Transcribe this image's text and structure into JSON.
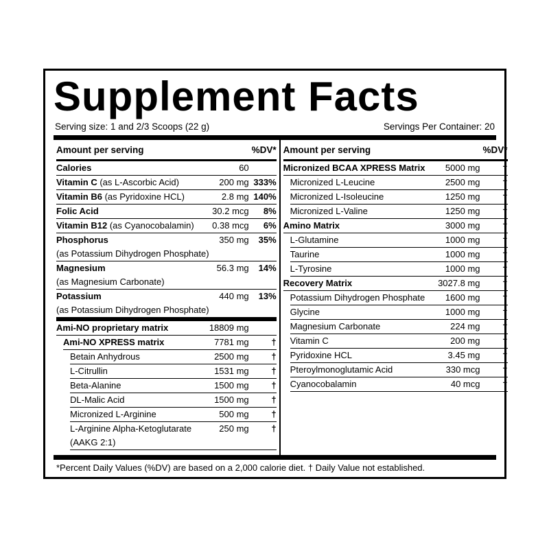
{
  "title": "Supplement Facts",
  "serving_size": "Serving size: 1 and 2/3 Scoops (22 g)",
  "servings_per_container": "Servings Per Container: 20",
  "left": {
    "headers": [
      "Amount per serving",
      "%DV*"
    ],
    "nutrients": [
      {
        "name": "Calories",
        "amount": "60"
      },
      {
        "name": "Vitamin C",
        "qualifier": "(as L-Ascorbic Acid)",
        "amount": "200 mg",
        "dv": "333%"
      },
      {
        "name": "Vitamin B6",
        "qualifier": "(as Pyridoxine HCL)",
        "amount": "2.8 mg",
        "dv": "140%"
      },
      {
        "name": "Folic Acid",
        "amount": "30.2 mcg",
        "dv": "8%"
      },
      {
        "name": "Vitamin B12",
        "qualifier": "(as Cyanocobalamin)",
        "amount": "0.38 mcg",
        "dv": "6%"
      },
      {
        "name": "Phosphorus",
        "detail": "(as Potassium Dihydrogen Phosphate)",
        "amount": "350 mg",
        "dv": "35%"
      },
      {
        "name": "Magnesium",
        "detail": "(as Magnesium Carbonate)",
        "amount": "56.3 mg",
        "dv": "14%"
      },
      {
        "name": "Potassium",
        "detail": "(as Potassium Dihydrogen Phosphate)",
        "amount": "440 mg",
        "dv": "13%"
      }
    ],
    "blend": {
      "name": "Ami-NO proprietary matrix",
      "amount": "18809 mg",
      "groups": [
        {
          "name": "Ami-NO XPRESS matrix",
          "amount": "7781 mg",
          "dv": "†",
          "items": [
            {
              "name": "Betain Anhydrous",
              "amount": "2500 mg",
              "dv": "†"
            },
            {
              "name": "L-Citrullin",
              "amount": "1531 mg",
              "dv": "†"
            },
            {
              "name": "Beta-Alanine",
              "amount": "1500 mg",
              "dv": "†"
            },
            {
              "name": "DL-Malic Acid",
              "amount": "1500 mg",
              "dv": "†"
            },
            {
              "name": "Micronized L-Arginine",
              "amount": "500 mg",
              "dv": "†"
            },
            {
              "name": "L-Arginine Alpha-Ketoglutarate",
              "detail": "(AAKG 2:1)",
              "amount": "250 mg",
              "dv": "†"
            }
          ]
        }
      ]
    }
  },
  "right": {
    "headers": [
      "Amount per serving",
      "%DV*"
    ],
    "blends": [
      {
        "name": "Micronized BCAA XPRESS Matrix",
        "amount": "5000 mg",
        "dv": "†",
        "items": [
          {
            "name": "Micronized L-Leucine",
            "amount": "2500 mg",
            "dv": "†"
          },
          {
            "name": "Micronized L-Isoleucine",
            "amount": "1250 mg",
            "dv": "†"
          },
          {
            "name": "Micronized L-Valine",
            "amount": "1250 mg",
            "dv": "†"
          }
        ]
      },
      {
        "name": "Amino Matrix",
        "amount": "3000 mg",
        "dv": "†",
        "items": [
          {
            "name": "L-Glutamine",
            "amount": "1000 mg",
            "dv": "†"
          },
          {
            "name": "Taurine",
            "amount": "1000 mg",
            "dv": "†"
          },
          {
            "name": "L-Tyrosine",
            "amount": "1000 mg",
            "dv": "†"
          }
        ]
      },
      {
        "name": "Recovery Matrix",
        "amount": "3027.8 mg",
        "dv": "†",
        "items": [
          {
            "name": "Potassium Dihydrogen Phosphate",
            "amount": "1600 mg",
            "dv": "†"
          },
          {
            "name": "Glycine",
            "amount": "1000 mg",
            "dv": "†"
          },
          {
            "name": "Magnesium Carbonate",
            "amount": "224 mg",
            "dv": "†"
          },
          {
            "name": "Vitamin C",
            "amount": "200 mg",
            "dv": "†"
          },
          {
            "name": "Pyridoxine HCL",
            "amount": "3.45 mg",
            "dv": "†"
          },
          {
            "name": "Pteroylmonoglutamic Acid",
            "amount": "330 mcg",
            "dv": "†"
          },
          {
            "name": "Cyanocobalamin",
            "amount": "40 mcg",
            "dv": "†"
          }
        ]
      }
    ]
  },
  "footnote": "*Percent Daily Values (%DV) are based on a 2,000 calorie diet. † Daily Value not established."
}
